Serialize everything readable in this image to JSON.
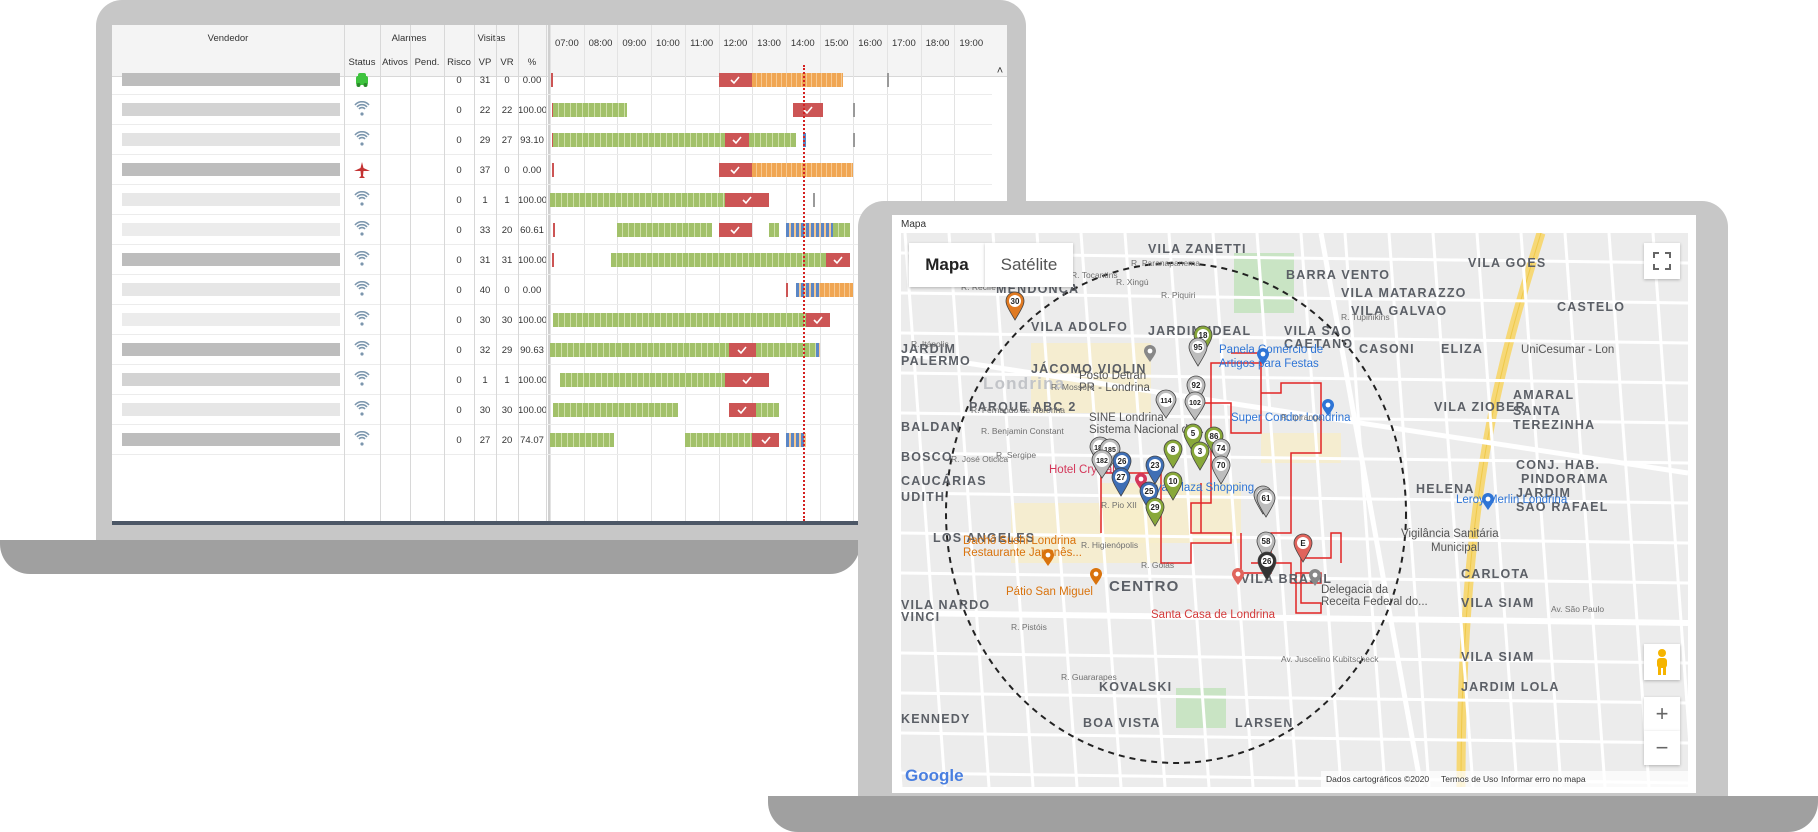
{
  "dashboard": {
    "headers": {
      "vendedor": "Vendedor",
      "alarmes": "Alarmes",
      "visitas": "Visitas",
      "status": "Status",
      "ativos": "Ativos",
      "pend": "Pend.",
      "risco": "Risco",
      "vp": "VP",
      "vr": "VR",
      "pct": "%"
    },
    "hours": [
      "07:00",
      "08:00",
      "09:00",
      "10:00",
      "11:00",
      "12:00",
      "13:00",
      "14:00",
      "15:00",
      "16:00",
      "17:00",
      "18:00",
      "19:00"
    ],
    "scroll_up": "˄",
    "rows": [
      {
        "status": "car-icon",
        "risco": "0",
        "vp": "31",
        "vr": "0",
        "pct": "0.00"
      },
      {
        "status": "signal-icon",
        "risco": "0",
        "vp": "22",
        "vr": "22",
        "pct": "100.00"
      },
      {
        "status": "signal-icon",
        "risco": "0",
        "vp": "29",
        "vr": "27",
        "pct": "93.10"
      },
      {
        "status": "airplane-icon",
        "risco": "0",
        "vp": "37",
        "vr": "0",
        "pct": "0.00"
      },
      {
        "status": "signal-icon",
        "risco": "0",
        "vp": "1",
        "vr": "1",
        "pct": "100.00"
      },
      {
        "status": "signal-icon",
        "risco": "0",
        "vp": "33",
        "vr": "20",
        "pct": "60.61"
      },
      {
        "status": "signal-icon",
        "risco": "0",
        "vp": "31",
        "vr": "31",
        "pct": "100.00"
      },
      {
        "status": "signal-icon",
        "risco": "0",
        "vp": "40",
        "vr": "0",
        "pct": "0.00"
      },
      {
        "status": "signal-icon",
        "risco": "0",
        "vp": "30",
        "vr": "30",
        "pct": "100.00"
      },
      {
        "status": "signal-icon",
        "risco": "0",
        "vp": "32",
        "vr": "29",
        "pct": "90.63"
      },
      {
        "status": "signal-icon",
        "risco": "0",
        "vp": "1",
        "vr": "1",
        "pct": "100.00"
      },
      {
        "status": "signal-icon",
        "risco": "0",
        "vp": "30",
        "vr": "30",
        "pct": "100.00"
      },
      {
        "status": "signal-icon",
        "risco": "0",
        "vp": "27",
        "vr": "20",
        "pct": "74.07"
      }
    ],
    "colors": {
      "done": "#a2c16a",
      "pending": "#f0a653",
      "alarm": "#cc5555",
      "gps": "#5b86c5",
      "now_line": "#d42020",
      "car": "#3ec33e",
      "signal": "#7c96ad",
      "plane": "#c43333"
    }
  },
  "map": {
    "panel_title": "Mapa",
    "tabs": {
      "map": "Mapa",
      "satellite": "Satélite"
    },
    "zoom_in": "+",
    "zoom_out": "−",
    "attribution": {
      "data": "Dados cartográficos ©2020",
      "terms": "Termos de Uso",
      "report": "Informar erro no mapa"
    },
    "google_logo": "Google",
    "districts": [
      "VILA ZANETTI",
      "BARRA VENTO",
      "VILA GOES",
      "MENDONÇA",
      "VILA MATARAZZO",
      "VILA GALVAO",
      "CASTELO",
      "VILA ADOLFO",
      "JARDIM IDEAL",
      "VILA SAO",
      "CAETANO",
      "CASONI",
      "ELIZA",
      "JARDIM",
      "PALERMO",
      "JÁCOMO VIOLIN",
      "Londrina",
      "PARQUE ABC 2",
      "VILA ZIOBER",
      "AMARAL",
      "SANTA",
      "TEREZINHA",
      "BALDAN",
      "BOSCO",
      "CAUCÁRIAS",
      "UDITH",
      "CONJ. HAB.",
      "PINDORAMA",
      "HELENA",
      "JARDIM",
      "SAO RAFAEL",
      "LOS ANGELES",
      "CARLOTA",
      "VILA BRASIL",
      "VILA SIAM",
      "VILA NARDO",
      "VINCI",
      "CENTRO",
      "VILA SIAM",
      "JARDIM LOLA",
      "KOVALSKI",
      "KENNEDY",
      "BOA VISTA",
      "LARSEN"
    ],
    "pois": [
      {
        "name": "Panela Comércio de",
        "color": "#2f75d6"
      },
      {
        "name": "Artigos para Festas",
        "color": "#2f75d6"
      },
      {
        "name": "UniCesumar - Lon",
        "color": "#555"
      },
      {
        "name": "Posto Detran",
        "color": "#555"
      },
      {
        "name": "PR - Londrina",
        "color": "#555"
      },
      {
        "name": "Super Condor Londrina",
        "color": "#2f75d6"
      },
      {
        "name": "SINE Londrina",
        "color": "#555"
      },
      {
        "name": "Sistema Nacional de...",
        "color": "#555"
      },
      {
        "name": "Hotel Crystal",
        "color": "#d4375a"
      },
      {
        "name": "Royal Plaza Shopping",
        "color": "#2f75d6"
      },
      {
        "name": "Leroy Merlin Londrina",
        "color": "#2f75d6"
      },
      {
        "name": "Vigilância Sanitária",
        "color": "#555"
      },
      {
        "name": "Municipal",
        "color": "#555"
      },
      {
        "name": "Dachô Sushi Londrina",
        "color": "#d9730d"
      },
      {
        "name": "Restaurante Japonês...",
        "color": "#d9730d"
      },
      {
        "name": "Pátio San Miguel",
        "color": "#d9730d"
      },
      {
        "name": "Delegacia da",
        "color": "#555"
      },
      {
        "name": "Receita Federal do...",
        "color": "#555"
      },
      {
        "name": "Santa Casa de Londrina",
        "color": "#d33a3a"
      }
    ],
    "streets": [
      "R. Paranapanema",
      "R. Tocantins",
      "R. Piquiri",
      "R. Tupinikins",
      "R. Ipiranga",
      "R. Itápolis",
      "R. Fernando de Noronha",
      "R. Benjamin Constant",
      "R. Sergipe",
      "R. José Oticica",
      "R. Mossoró",
      "R. Goiás",
      "R. Pistóis",
      "R. Guararapes",
      "Av. Juscelino Kubitscheck",
      "Av. São Paulo",
      "R. Higienópolis",
      "R. Pio XII",
      "R. Recife",
      "R. Xingú"
    ],
    "markers": [
      {
        "n": "30",
        "color": "#e07a22"
      },
      {
        "n": "18",
        "color": "#88a83a"
      },
      {
        "n": "95",
        "color": "#bdbdbd"
      },
      {
        "n": "92",
        "color": "#bdbdbd"
      },
      {
        "n": "102",
        "color": "#bdbdbd"
      },
      {
        "n": "114",
        "color": "#bdbdbd"
      },
      {
        "n": "5",
        "color": "#88a83a"
      },
      {
        "n": "86",
        "color": "#88a83a"
      },
      {
        "n": "74",
        "color": "#bdbdbd"
      },
      {
        "n": "3",
        "color": "#88a83a"
      },
      {
        "n": "70",
        "color": "#bdbdbd"
      },
      {
        "n": "8",
        "color": "#88a83a"
      },
      {
        "n": "187",
        "color": "#bdbdbd"
      },
      {
        "n": "185",
        "color": "#bdbdbd"
      },
      {
        "n": "182",
        "color": "#bdbdbd"
      },
      {
        "n": "26",
        "color": "#3f6fb5"
      },
      {
        "n": "27",
        "color": "#3f6fb5"
      },
      {
        "n": "23",
        "color": "#3f6fb5"
      },
      {
        "n": "25",
        "color": "#3f6fb5"
      },
      {
        "n": "10",
        "color": "#88a83a"
      },
      {
        "n": "29",
        "color": "#88a83a"
      },
      {
        "n": "64",
        "color": "#bdbdbd"
      },
      {
        "n": "61",
        "color": "#bdbdbd"
      },
      {
        "n": "58",
        "color": "#bdbdbd"
      },
      {
        "n": "26",
        "color": "#333"
      },
      {
        "n": "E",
        "color": "#e0645c"
      }
    ]
  }
}
